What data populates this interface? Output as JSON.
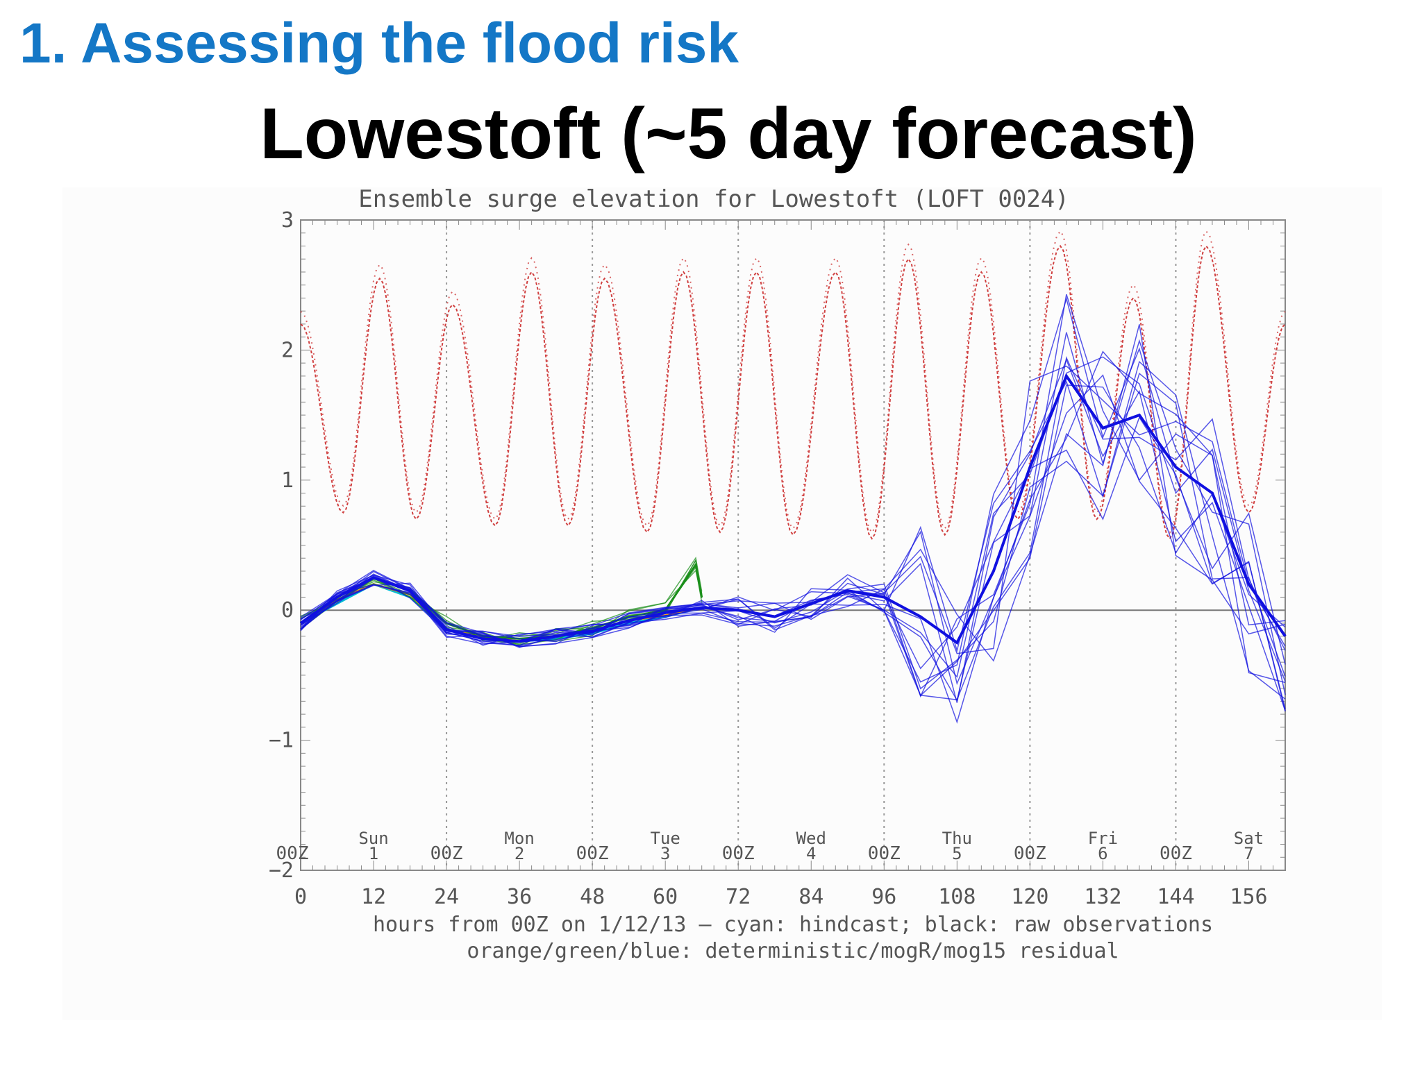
{
  "slide": {
    "heading": "1. Assessing the flood risk",
    "subtitle": "Lowestoft (~5 day forecast)"
  },
  "chart_data": {
    "type": "line",
    "title": "Ensemble surge elevation for Lowestoft (LOFT 0024)",
    "xlabel": "hours from 00Z on 1/12/13  –  cyan: hindcast; black: raw observations",
    "xlabel2": "orange/green/blue: deterministic/mogR/mog15 residual",
    "ylabel": "",
    "xlim": [
      0,
      162
    ],
    "ylim": [
      -2,
      3
    ],
    "x_ticks": [
      "0",
      "12",
      "24",
      "36",
      "48",
      "60",
      "72",
      "84",
      "96",
      "108",
      "120",
      "132",
      "144",
      "156"
    ],
    "y_ticks": [
      "3",
      "2",
      "1",
      "0",
      "−1",
      "−2"
    ],
    "day_markers": [
      {
        "x": 0,
        "label": "00Z"
      },
      {
        "x": 24,
        "label": "00Z"
      },
      {
        "x": 48,
        "label": "00Z"
      },
      {
        "x": 72,
        "label": "00Z"
      },
      {
        "x": 96,
        "label": "00Z"
      },
      {
        "x": 120,
        "label": "00Z"
      },
      {
        "x": 144,
        "label": "00Z"
      }
    ],
    "day_labels": [
      {
        "x": 12,
        "day": "Sun",
        "date": "1"
      },
      {
        "x": 36,
        "day": "Mon",
        "date": "2"
      },
      {
        "x": 60,
        "day": "Tue",
        "date": "3"
      },
      {
        "x": 84,
        "day": "Wed",
        "date": "4"
      },
      {
        "x": 108,
        "day": "Thu",
        "date": "5"
      },
      {
        "x": 132,
        "day": "Fri",
        "date": "6"
      },
      {
        "x": 156,
        "day": "Sat",
        "date": "7"
      }
    ],
    "tide_peaks": [
      [
        0,
        2.2
      ],
      [
        13,
        2.55
      ],
      [
        25,
        2.35
      ],
      [
        38,
        2.6
      ],
      [
        50,
        2.55
      ],
      [
        63,
        2.6
      ],
      [
        75,
        2.6
      ],
      [
        88,
        2.6
      ],
      [
        100,
        2.7
      ],
      [
        112,
        2.6
      ],
      [
        125,
        2.8
      ],
      [
        137,
        2.4
      ],
      [
        149,
        2.8
      ],
      [
        162,
        2.2
      ]
    ],
    "tide_troughs": [
      [
        7,
        0.75
      ],
      [
        19,
        0.7
      ],
      [
        32,
        0.65
      ],
      [
        44,
        0.65
      ],
      [
        57,
        0.6
      ],
      [
        69,
        0.6
      ],
      [
        81,
        0.58
      ],
      [
        94,
        0.55
      ],
      [
        106,
        0.58
      ],
      [
        118,
        0.7
      ],
      [
        131,
        0.7
      ],
      [
        143,
        0.55
      ],
      [
        156,
        0.75
      ]
    ],
    "series": [
      {
        "name": "hindcast",
        "color": "#00bcd4",
        "x": [
          0,
          6,
          12,
          18,
          24,
          30,
          36,
          42,
          48,
          54,
          60,
          66
        ],
        "y": [
          -0.1,
          0.05,
          0.2,
          0.1,
          -0.15,
          -0.22,
          -0.24,
          -0.22,
          -0.18,
          -0.1,
          -0.05,
          0.02
        ]
      },
      {
        "name": "deterministic",
        "color": "#f0a000",
        "x": [
          0,
          6,
          12,
          18,
          24,
          30,
          36,
          42,
          48,
          54,
          60,
          66
        ],
        "y": [
          -0.1,
          0.08,
          0.2,
          0.12,
          -0.15,
          -0.2,
          -0.24,
          -0.2,
          -0.16,
          -0.08,
          -0.04,
          0.02
        ]
      },
      {
        "name": "mogR",
        "color": "#1a8f1a",
        "x": [
          0,
          6,
          12,
          18,
          24,
          30,
          36,
          42,
          48,
          54,
          60,
          65,
          66
        ],
        "y": [
          -0.1,
          0.1,
          0.25,
          0.15,
          -0.1,
          -0.2,
          -0.22,
          -0.2,
          -0.14,
          -0.05,
          0.0,
          0.35,
          0.1
        ]
      },
      {
        "name": "mog15",
        "color": "#1010e0",
        "x": [
          0,
          6,
          12,
          18,
          24,
          30,
          36,
          42,
          48,
          54,
          60,
          66,
          72,
          78,
          84,
          90,
          96,
          102,
          108,
          114,
          120,
          126,
          132,
          138,
          144,
          150,
          156,
          162
        ],
        "y": [
          -0.1,
          0.1,
          0.25,
          0.15,
          -0.15,
          -0.22,
          -0.24,
          -0.2,
          -0.16,
          -0.08,
          -0.02,
          0.02,
          0.0,
          -0.05,
          0.05,
          0.15,
          0.1,
          -0.05,
          -0.25,
          0.3,
          1.1,
          1.8,
          1.4,
          1.5,
          1.1,
          0.9,
          0.2,
          -0.2
        ]
      }
    ],
    "colors": {
      "tide": "#d04040",
      "grid": "#999999",
      "axis": "#888888"
    }
  }
}
